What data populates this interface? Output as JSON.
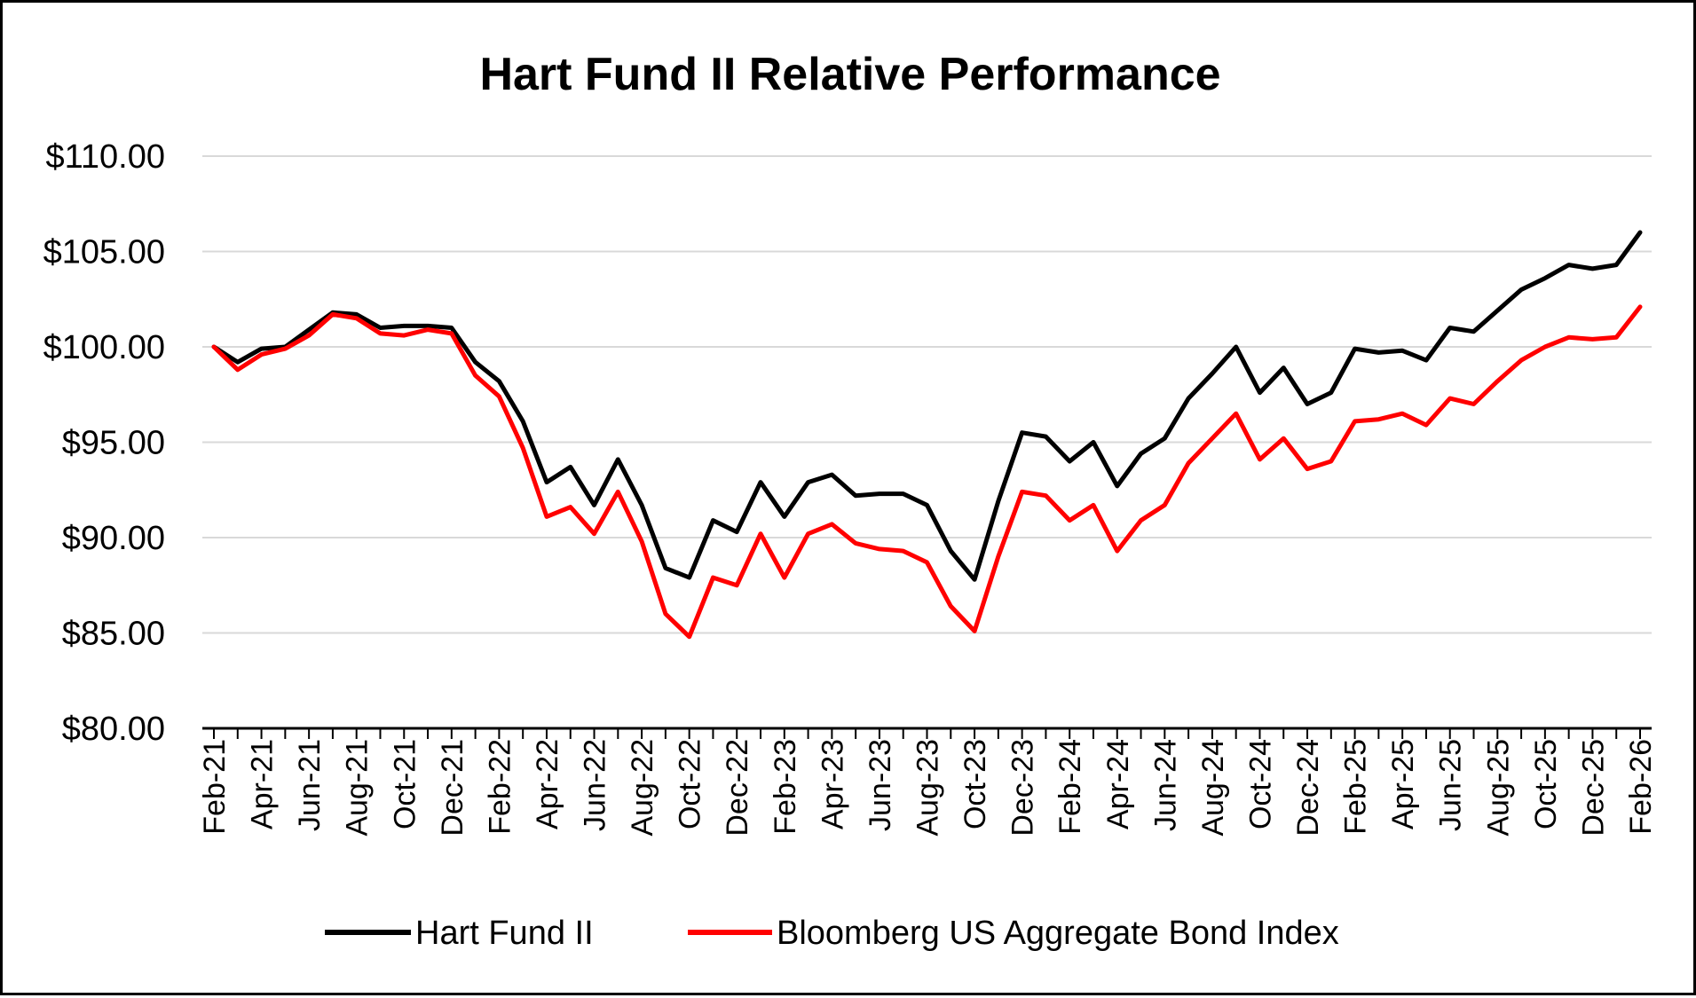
{
  "chart_data": {
    "type": "line",
    "title": "Hart Fund II Relative Performance",
    "xlabel": "",
    "ylabel": "",
    "ylim": [
      80,
      110
    ],
    "y_ticks": [
      80,
      85,
      90,
      95,
      100,
      105,
      110
    ],
    "y_tick_labels": [
      "$80.00",
      "$85.00",
      "$90.00",
      "$95.00",
      "$100.00",
      "$105.00",
      "$110.00"
    ],
    "grid": true,
    "legend_position": "bottom",
    "x": [
      "Feb-21",
      "Mar-21",
      "Apr-21",
      "May-21",
      "Jun-21",
      "Jul-21",
      "Aug-21",
      "Sep-21",
      "Oct-21",
      "Nov-21",
      "Dec-21",
      "Jan-22",
      "Feb-22",
      "Mar-22",
      "Apr-22",
      "May-22",
      "Jun-22",
      "Jul-22",
      "Aug-22",
      "Sep-22",
      "Oct-22",
      "Nov-22",
      "Dec-22",
      "Jan-23",
      "Feb-23",
      "Mar-23",
      "Apr-23",
      "May-23",
      "Jun-23",
      "Jul-23",
      "Aug-23",
      "Sep-23",
      "Oct-23",
      "Nov-23",
      "Dec-23",
      "Jan-24",
      "Feb-24",
      "Mar-24",
      "Apr-24",
      "May-24",
      "Jun-24",
      "Jul-24",
      "Aug-24",
      "Sep-24",
      "Oct-24",
      "Nov-24",
      "Dec-24",
      "Jan-25",
      "Feb-25",
      "Mar-25",
      "Apr-25",
      "May-25",
      "Jun-25",
      "Jul-25",
      "Aug-25",
      "Sep-25",
      "Oct-25",
      "Nov-25",
      "Dec-25",
      "Jan-26",
      "Feb-26"
    ],
    "x_tick_labels": [
      "Feb-21",
      "Apr-21",
      "Jun-21",
      "Aug-21",
      "Oct-21",
      "Dec-21",
      "Feb-22",
      "Apr-22",
      "Jun-22",
      "Aug-22",
      "Oct-22",
      "Dec-22",
      "Feb-23",
      "Apr-23",
      "Jun-23",
      "Aug-23",
      "Oct-23",
      "Dec-23",
      "Feb-24",
      "Apr-24",
      "Jun-24",
      "Aug-24",
      "Oct-24",
      "Dec-24",
      "Feb-25",
      "Apr-25",
      "Jun-25",
      "Aug-25",
      "Oct-25",
      "Dec-25",
      "Feb-26"
    ],
    "series": [
      {
        "name": "Hart Fund II",
        "color": "#000000",
        "values": [
          100.0,
          99.2,
          99.9,
          100.0,
          100.9,
          101.8,
          101.7,
          101.0,
          101.1,
          101.1,
          101.0,
          99.2,
          98.2,
          96.1,
          92.9,
          93.7,
          91.7,
          94.1,
          91.7,
          88.4,
          87.9,
          90.9,
          90.3,
          92.9,
          91.1,
          92.9,
          93.3,
          92.2,
          92.3,
          92.3,
          91.7,
          89.3,
          87.8,
          91.9,
          95.5,
          95.3,
          94.0,
          95.0,
          92.7,
          94.4,
          95.2,
          97.3,
          98.6,
          100.0,
          97.6,
          98.9,
          97.0,
          97.6,
          99.9,
          99.7,
          99.8,
          99.3,
          101.0,
          100.8,
          101.9,
          103.0,
          103.6,
          104.3,
          104.1,
          104.3,
          106.0
        ]
      },
      {
        "name": "Bloomberg US Aggregate Bond Index",
        "color": "#ff0000",
        "values": [
          100.0,
          98.8,
          99.6,
          99.9,
          100.6,
          101.7,
          101.5,
          100.7,
          100.6,
          100.9,
          100.7,
          98.5,
          97.4,
          94.7,
          91.1,
          91.6,
          90.2,
          92.4,
          89.8,
          86.0,
          84.8,
          87.9,
          87.5,
          90.2,
          87.9,
          90.2,
          90.7,
          89.7,
          89.4,
          89.3,
          88.7,
          86.4,
          85.1,
          89.0,
          92.4,
          92.2,
          90.9,
          91.7,
          89.3,
          90.9,
          91.7,
          93.9,
          95.2,
          96.5,
          94.1,
          95.2,
          93.6,
          94.0,
          96.1,
          96.2,
          96.5,
          95.9,
          97.3,
          97.0,
          98.2,
          99.3,
          100.0,
          100.5,
          100.4,
          100.5,
          102.1
        ]
      }
    ]
  }
}
